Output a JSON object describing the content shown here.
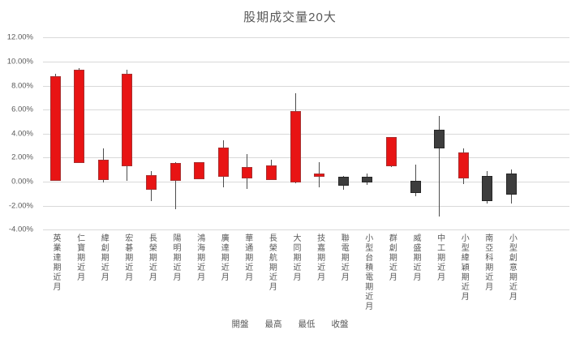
{
  "title": "股期成交量20大",
  "colors": {
    "up_fill": "#e81414",
    "up_border": "#a83030",
    "down_fill": "#3d3d3d",
    "down_border": "#262626",
    "grid": "#d9d9d9",
    "text": "#595959",
    "wick": "#4d4d4d"
  },
  "legend": [
    "開盤",
    "最高",
    "最低",
    "收盤"
  ],
  "chart_data": {
    "type": "candlestick-ohlc",
    "title": "股期成交量20大",
    "grid": true,
    "legend_position": "bottom",
    "y_axis": {
      "min": -4,
      "max": 12,
      "step": 2,
      "unit": "%"
    },
    "y_ticks": [
      "12.00%",
      "10.00%",
      "8.00%",
      "6.00%",
      "4.00%",
      "2.00%",
      "0.00%",
      "-2.00%",
      "-4.00%"
    ],
    "y_tick_values": [
      12,
      10,
      8,
      6,
      4,
      2,
      0,
      -2,
      -4
    ],
    "categories": [
      "英業達期近月",
      "仁寶期近月",
      "緯創期近月",
      "宏碁期近月",
      "長榮期近月",
      "陽明期近月",
      "鴻海期近月",
      "廣達期近月",
      "華通期近月",
      "長榮航期近月",
      "大同期近月",
      "技嘉期近月",
      "聯電期近月",
      "小型台積電期近月",
      "群創期近月",
      "威盛期近月",
      "中工期近月",
      "小型緯穎期近月",
      "南亞科期近月",
      "小型創意期近月"
    ],
    "series": [
      {
        "name": "開盤",
        "values": [
          0.1,
          1.55,
          0.15,
          1.3,
          -0.7,
          0.1,
          0.2,
          0.4,
          0.25,
          0.15,
          -0.1,
          0.4,
          0.4,
          0.4,
          1.25,
          0.05,
          4.3,
          0.3,
          0.45,
          0.7
        ]
      },
      {
        "name": "最高",
        "values": [
          9.0,
          9.45,
          2.75,
          9.35,
          0.9,
          1.65,
          1.6,
          3.45,
          2.3,
          1.8,
          7.35,
          1.65,
          0.45,
          0.65,
          3.75,
          1.4,
          5.45,
          2.8,
          0.9,
          1.0
        ]
      },
      {
        "name": "最低",
        "values": [
          0.1,
          1.55,
          -0.1,
          0.1,
          -1.65,
          -2.3,
          0.2,
          -0.45,
          -0.6,
          0.15,
          -0.15,
          -0.45,
          -0.65,
          -0.3,
          1.2,
          -1.25,
          -2.9,
          -0.2,
          -1.8,
          -1.85
        ]
      },
      {
        "name": "收盤",
        "values": [
          8.8,
          9.3,
          1.8,
          9.0,
          0.55,
          1.55,
          1.6,
          2.85,
          1.2,
          1.35,
          5.9,
          0.7,
          -0.35,
          -0.05,
          3.7,
          -0.95,
          2.8,
          2.45,
          -1.65,
          -1.1
        ]
      }
    ]
  }
}
